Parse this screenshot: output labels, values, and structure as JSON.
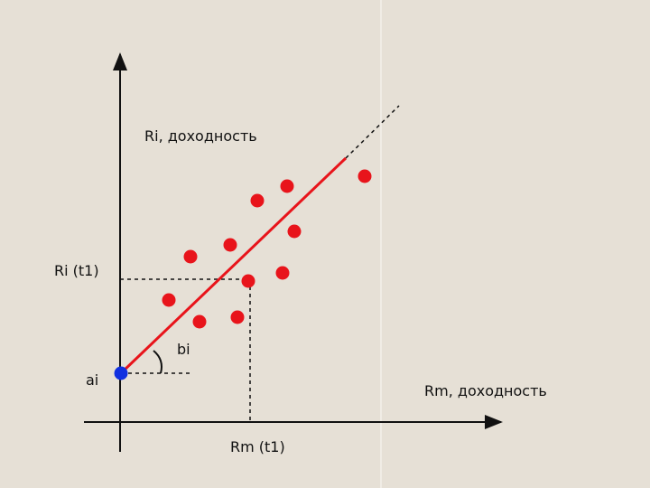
{
  "labels": {
    "y_axis": "Ri, доходность",
    "x_axis": "Rm, доходность",
    "ri_t1": "Ri (t1)",
    "rm_t1": "Rm (t1)",
    "alpha": "ai",
    "beta": "bi"
  }
}
